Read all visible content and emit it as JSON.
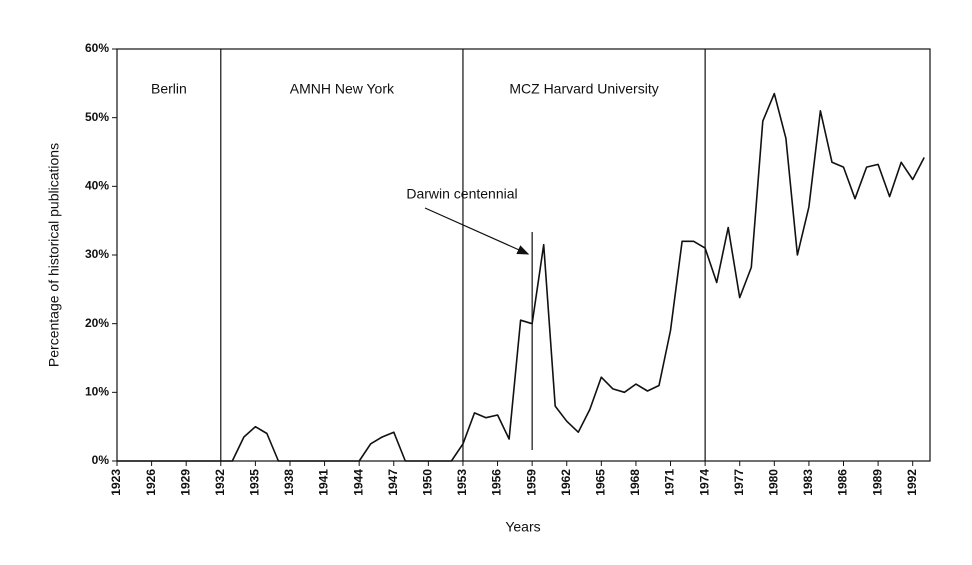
{
  "chart_data": {
    "type": "line",
    "y_label": "Percentage of historical publications",
    "x_label": "Years",
    "x": [
      1923,
      1924,
      1925,
      1926,
      1927,
      1928,
      1929,
      1930,
      1931,
      1932,
      1933,
      1934,
      1935,
      1936,
      1937,
      1938,
      1939,
      1940,
      1941,
      1942,
      1943,
      1944,
      1945,
      1946,
      1947,
      1948,
      1949,
      1950,
      1951,
      1952,
      1953,
      1954,
      1955,
      1956,
      1957,
      1958,
      1959,
      1960,
      1961,
      1962,
      1963,
      1964,
      1965,
      1966,
      1967,
      1968,
      1969,
      1970,
      1971,
      1972,
      1973,
      1974,
      1975,
      1976,
      1977,
      1978,
      1979,
      1980,
      1981,
      1982,
      1983,
      1984,
      1985,
      1986,
      1987,
      1988,
      1989,
      1990,
      1991,
      1992,
      1993
    ],
    "series": [
      {
        "color": "#111111",
        "values": [
          0,
          0,
          0,
          0,
          0,
          0,
          0,
          0,
          0,
          0,
          0,
          3.5,
          5,
          4,
          0,
          0,
          0,
          0,
          0,
          0,
          0,
          0,
          2.5,
          3.5,
          4.2,
          0,
          0,
          0,
          0,
          0,
          2.5,
          7,
          6.3,
          6.7,
          3.2,
          20.5,
          20,
          31.5,
          8,
          5.8,
          4.2,
          7.5,
          12.2,
          10.5,
          10,
          11.2,
          10.2,
          11,
          19,
          32,
          32,
          31,
          26,
          34,
          23.8,
          28.2,
          49.5,
          53.5,
          47,
          30,
          37,
          51,
          43.5,
          42.8,
          38.2,
          42.8,
          43.2,
          38.5,
          43.5,
          41,
          44.2
        ]
      }
    ],
    "xlim": [
      1923,
      1993.5
    ],
    "xticks": [
      1923,
      1926,
      1929,
      1932,
      1935,
      1938,
      1941,
      1944,
      1947,
      1950,
      1953,
      1956,
      1959,
      1962,
      1965,
      1968,
      1971,
      1974,
      1977,
      1980,
      1983,
      1986,
      1989,
      1992
    ],
    "ylim": [
      0,
      60
    ],
    "yticks": [
      {
        "value": 0,
        "label": "0%"
      },
      {
        "value": 10,
        "label": "10%"
      },
      {
        "value": 20,
        "label": "20%"
      },
      {
        "value": 30,
        "label": "30%"
      },
      {
        "value": 40,
        "label": "40%"
      },
      {
        "value": 50,
        "label": "50%"
      },
      {
        "value": 60,
        "label": "60%"
      }
    ],
    "dividers": [
      1932,
      1953,
      1974
    ],
    "regions": [
      {
        "text": "Berlin",
        "x": 1927.5
      },
      {
        "text": "AMNH  New York",
        "x": 1942.5
      },
      {
        "text": "MCZ  Harvard University",
        "x": 1963.5
      }
    ],
    "annotation": {
      "text": "Darwin centennial",
      "x": 1959
    }
  }
}
